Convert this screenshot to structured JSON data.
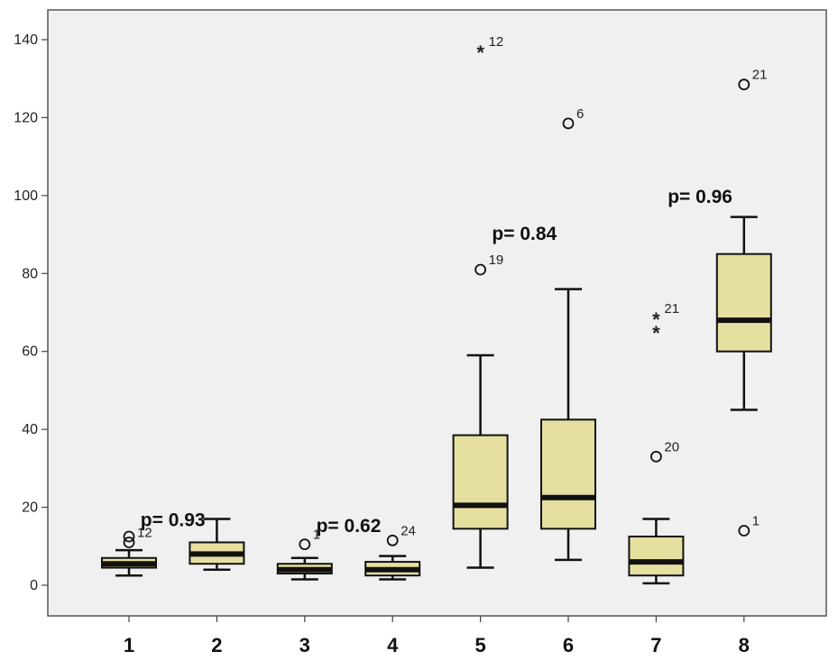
{
  "chart_data": {
    "type": "boxplot",
    "title": "",
    "xlabel": "",
    "ylabel": "",
    "ylim": [
      -8,
      148
    ],
    "yticks": [
      0,
      20,
      40,
      60,
      80,
      100,
      120,
      140
    ],
    "grid": false,
    "colors": {
      "box_fill": "#e6e0a0",
      "plot_bg": "#f0f0f0",
      "line": "#111111"
    },
    "categories": [
      "1",
      "2",
      "3",
      "4",
      "5",
      "6",
      "7",
      "8"
    ],
    "boxes": [
      {
        "category": "1",
        "whisker_low": 2.5,
        "q1": 4.5,
        "median": 5.5,
        "q3": 7,
        "whisker_high": 9
      },
      {
        "category": "2",
        "whisker_low": 4,
        "q1": 5.5,
        "median": 8,
        "q3": 11,
        "whisker_high": 17
      },
      {
        "category": "3",
        "whisker_low": 1.5,
        "q1": 3,
        "median": 4,
        "q3": 5.5,
        "whisker_high": 7
      },
      {
        "category": "4",
        "whisker_low": 1.5,
        "q1": 2.5,
        "median": 4,
        "q3": 6,
        "whisker_high": 7.5
      },
      {
        "category": "5",
        "whisker_low": 4.5,
        "q1": 14.5,
        "median": 20.5,
        "q3": 38.5,
        "whisker_high": 59
      },
      {
        "category": "6",
        "whisker_low": 6.5,
        "q1": 14.5,
        "median": 22.5,
        "q3": 42.5,
        "whisker_high": 76
      },
      {
        "category": "7",
        "whisker_low": 0.5,
        "q1": 2.5,
        "median": 6,
        "q3": 12.5,
        "whisker_high": 17
      },
      {
        "category": "8",
        "whisker_low": 45,
        "q1": 60,
        "median": 68,
        "q3": 85,
        "whisker_high": 94.5
      }
    ],
    "outliers": [
      {
        "category": "1",
        "y": 12.5,
        "marker": "circle",
        "label": ""
      },
      {
        "category": "1",
        "y": 11,
        "marker": "circle",
        "label": "12"
      },
      {
        "category": "3",
        "y": 10.5,
        "marker": "circle",
        "label": "1"
      },
      {
        "category": "4",
        "y": 11.5,
        "marker": "circle",
        "label": "24"
      },
      {
        "category": "5",
        "y": 137,
        "marker": "star",
        "label": "12"
      },
      {
        "category": "5",
        "y": 81,
        "marker": "circle",
        "label": "19"
      },
      {
        "category": "6",
        "y": 118.5,
        "marker": "circle",
        "label": "6"
      },
      {
        "category": "7",
        "y": 68.5,
        "marker": "star",
        "label": "21"
      },
      {
        "category": "7",
        "y": 65,
        "marker": "star",
        "label": ""
      },
      {
        "category": "7",
        "y": 33,
        "marker": "circle",
        "label": "20"
      },
      {
        "category": "8",
        "y": 128.5,
        "marker": "circle",
        "label": "21"
      },
      {
        "category": "8",
        "y": 14,
        "marker": "circle",
        "label": "1"
      }
    ],
    "annotations": [
      {
        "text": "p= 0.93",
        "between": [
          "1",
          "2"
        ],
        "y": 17
      },
      {
        "text": "p= 0.62",
        "between": [
          "3",
          "4"
        ],
        "y": 15.5
      },
      {
        "text": "p= 0.84",
        "between": [
          "5",
          "6"
        ],
        "y": 90.5
      },
      {
        "text": "p= 0.96",
        "between": [
          "7",
          "8"
        ],
        "y": 100
      }
    ]
  }
}
